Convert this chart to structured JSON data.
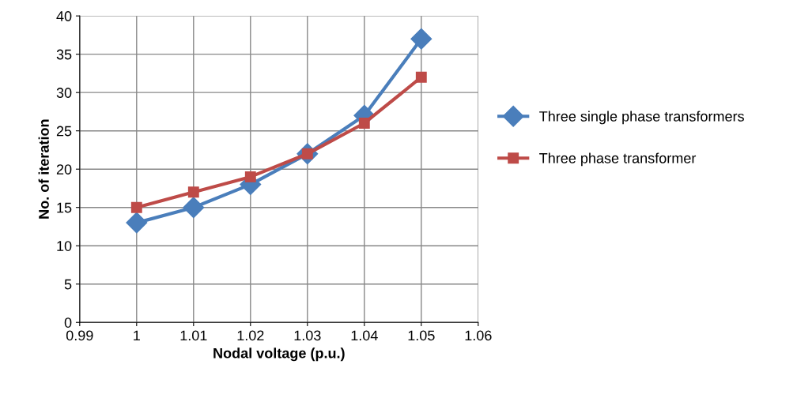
{
  "chart_data": {
    "type": "line",
    "xlabel": "Nodal voltage (p.u.)",
    "ylabel": "No. of iteration",
    "x": [
      1.0,
      1.01,
      1.02,
      1.03,
      1.04,
      1.05
    ],
    "series": [
      {
        "name": "Three single phase transformers",
        "color": "#4a7ebb",
        "marker": "diamond",
        "values": [
          13,
          15,
          18,
          22,
          27,
          37
        ]
      },
      {
        "name": "Three phase transformer",
        "color": "#be4b48",
        "marker": "square",
        "values": [
          15,
          17,
          19,
          22,
          26,
          32
        ]
      }
    ],
    "xlim": [
      0.99,
      1.06
    ],
    "xticks": [
      0.99,
      1,
      1.01,
      1.02,
      1.03,
      1.04,
      1.05,
      1.06
    ],
    "ylim": [
      0,
      40
    ],
    "yticks": [
      0,
      5,
      10,
      15,
      20,
      25,
      30,
      35,
      40
    ],
    "grid": true,
    "legend": "right",
    "line_style": "solid"
  }
}
